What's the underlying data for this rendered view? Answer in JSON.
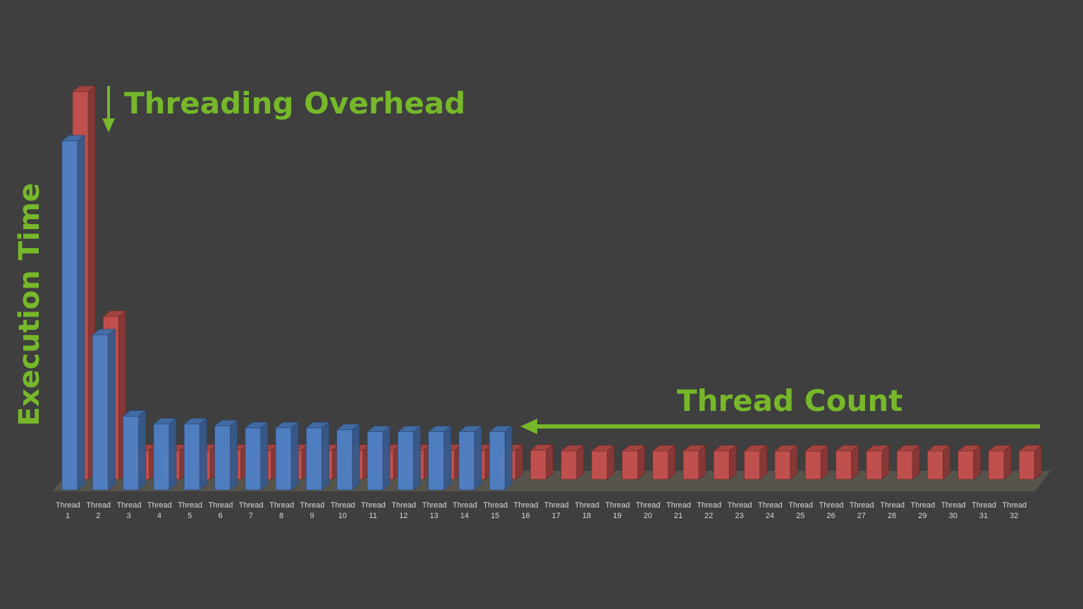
{
  "chart_data": {
    "type": "bar3d",
    "annotations": {
      "overhead": "Threading Overhead",
      "count": "Thread Count",
      "ylabel": "Execution Time"
    },
    "categories": [
      "Thread 1",
      "Thread 2",
      "Thread 3",
      "Thread 4",
      "Thread 5",
      "Thread 6",
      "Thread 7",
      "Thread 8",
      "Thread 9",
      "Thread 10",
      "Thread 11",
      "Thread 12",
      "Thread 13",
      "Thread 14",
      "Thread 15",
      "Thread 16",
      "Thread 17",
      "Thread 18",
      "Thread 19",
      "Thread 20",
      "Thread 21",
      "Thread 22",
      "Thread 23",
      "Thread 24",
      "Thread 25",
      "Thread 26",
      "Thread 27",
      "Thread 28",
      "Thread 29",
      "Thread 30",
      "Thread 31",
      "Thread 32"
    ],
    "ylim": [
      0,
      100
    ],
    "series": [
      {
        "color": "#c0504d",
        "row": "back",
        "values": [
          100,
          42,
          7.5,
          7.5,
          7.5,
          7.5,
          7.5,
          7.5,
          7.5,
          7.5,
          7.5,
          7.5,
          7.5,
          7.5,
          7.5,
          7.5,
          7.3,
          7.3,
          7.3,
          7.3,
          7.3,
          7.3,
          7.3,
          7.3,
          7.3,
          7.3,
          7.3,
          7.3,
          7.3,
          7.3,
          7.3,
          7.3
        ]
      },
      {
        "color": "#4f81c7",
        "row": "front",
        "values": [
          90,
          40,
          19,
          17,
          17,
          16.5,
          16,
          16,
          16,
          15.5,
          15,
          15,
          15,
          15,
          15,
          null,
          null,
          null,
          null,
          null,
          null,
          null,
          null,
          null,
          null,
          null,
          null,
          null,
          null,
          null,
          null,
          null
        ]
      }
    ]
  }
}
